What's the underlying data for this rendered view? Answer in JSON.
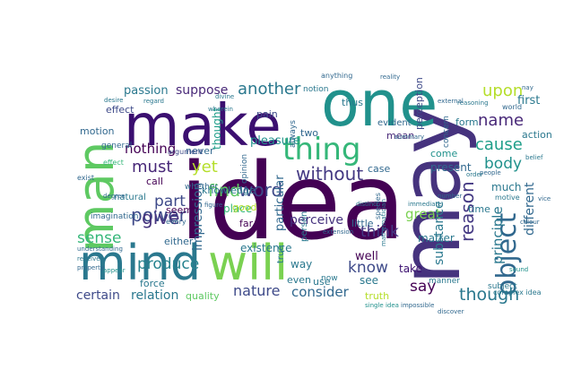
{
  "words": [
    {
      "text": "idea",
      "color": "#440154"
    },
    {
      "text": "may",
      "color": "#46337e"
    },
    {
      "text": "one",
      "color": "#21918c"
    },
    {
      "text": "make",
      "color": "#3b0f70"
    },
    {
      "text": "man",
      "color": "#5ec962"
    },
    {
      "text": "mind",
      "color": "#2a788e"
    },
    {
      "text": "will",
      "color": "#7ad151"
    },
    {
      "text": "thing",
      "color": "#35b779"
    },
    {
      "text": "object",
      "color": "#31688e"
    },
    {
      "text": "reason",
      "color": "#443983"
    },
    {
      "text": "without",
      "color": "#443983"
    },
    {
      "text": "word",
      "color": "#3e4a89"
    },
    {
      "text": "power",
      "color": "#3e4a89"
    },
    {
      "text": "another",
      "color": "#2a788e"
    },
    {
      "text": "must",
      "color": "#482878"
    },
    {
      "text": "give",
      "color": "#46337e"
    },
    {
      "text": "part",
      "color": "#3e4a89"
    },
    {
      "text": "find",
      "color": "#5ec962"
    },
    {
      "text": "yet",
      "color": "#b5de2b"
    },
    {
      "text": "upon",
      "color": "#b5de2b"
    },
    {
      "text": "name",
      "color": "#482878"
    },
    {
      "text": "cause",
      "color": "#1f9e89"
    },
    {
      "text": "body",
      "color": "#21918c"
    },
    {
      "text": "think",
      "color": "#443983"
    },
    {
      "text": "sense",
      "color": "#35b779"
    },
    {
      "text": "nothing",
      "color": "#440154"
    },
    {
      "text": "know",
      "color": "#3e4a89"
    },
    {
      "text": "say",
      "color": "#440154"
    },
    {
      "text": "though",
      "color": "#2a788e"
    },
    {
      "text": "produce",
      "color": "#26828e"
    },
    {
      "text": "nature",
      "color": "#3e4a89"
    },
    {
      "text": "consider",
      "color": "#31688e"
    },
    {
      "text": "great",
      "color": "#7ad151"
    },
    {
      "text": "principle",
      "color": "#2a788e"
    },
    {
      "text": "different",
      "color": "#31688e"
    },
    {
      "text": "impression",
      "color": "#31688e"
    },
    {
      "text": "suppose",
      "color": "#482878"
    },
    {
      "text": "passion",
      "color": "#2a788e"
    },
    {
      "text": "certain",
      "color": "#3e4a89"
    },
    {
      "text": "relation",
      "color": "#2a788e"
    },
    {
      "text": "substance",
      "color": "#2a788e"
    },
    {
      "text": "perceive",
      "color": "#46337e"
    },
    {
      "text": "pleasure",
      "color": "#21918c"
    },
    {
      "text": "thought",
      "color": "#1f9e89"
    },
    {
      "text": "particular",
      "color": "#31688e"
    },
    {
      "text": "motion",
      "color": "#31688e"
    },
    {
      "text": "effect",
      "color": "#3e4a89"
    },
    {
      "text": "call",
      "color": "#440154"
    },
    {
      "text": "place",
      "color": "#35b779"
    },
    {
      "text": "first",
      "color": "#2a788e"
    },
    {
      "text": "perception",
      "color": "#3e4a89"
    },
    {
      "text": "action",
      "color": "#2a788e"
    },
    {
      "text": "present",
      "color": "#31688e"
    },
    {
      "text": "knowledge",
      "color": "#2a788e"
    },
    {
      "text": "never",
      "color": "#31688e"
    },
    {
      "text": "mean",
      "color": "#482878"
    },
    {
      "text": "well",
      "color": "#440154"
    },
    {
      "text": "take",
      "color": "#3b0f70"
    },
    {
      "text": "see",
      "color": "#2a788e"
    },
    {
      "text": "way",
      "color": "#2a788e"
    },
    {
      "text": "even",
      "color": "#2a788e"
    },
    {
      "text": "force",
      "color": "#2a788e"
    },
    {
      "text": "quality",
      "color": "#5ec962"
    },
    {
      "text": "truth",
      "color": "#b5de2b"
    },
    {
      "text": "time",
      "color": "#2a788e"
    },
    {
      "text": "matter",
      "color": "#2a788e"
    },
    {
      "text": "much",
      "color": "#2a788e"
    },
    {
      "text": "come",
      "color": "#21918c"
    },
    {
      "text": "form",
      "color": "#2a788e"
    },
    {
      "text": "existence",
      "color": "#2a788e"
    },
    {
      "text": "little",
      "color": "#31688e"
    },
    {
      "text": "seem",
      "color": "#440154"
    },
    {
      "text": "good",
      "color": "#b5de2b"
    },
    {
      "text": "far",
      "color": "#440154"
    },
    {
      "text": "either",
      "color": "#31688e"
    },
    {
      "text": "use",
      "color": "#2a788e"
    },
    {
      "text": "case",
      "color": "#31688e"
    },
    {
      "text": "thus",
      "color": "#2a788e"
    },
    {
      "text": "evident",
      "color": "#31688e"
    },
    {
      "text": "two",
      "color": "#31688e"
    },
    {
      "text": "pain",
      "color": "#3e4a89"
    },
    {
      "text": "natural",
      "color": "#2a788e"
    },
    {
      "text": "imagination",
      "color": "#31688e"
    },
    {
      "text": "person",
      "color": "#2a788e"
    },
    {
      "text": "true",
      "color": "#2a788e"
    },
    {
      "text": "always",
      "color": "#31688e"
    },
    {
      "text": "manner",
      "color": "#2a788e"
    },
    {
      "text": "subject",
      "color": "#2a788e"
    },
    {
      "text": "opinion",
      "color": "#31688e"
    },
    {
      "text": "whether",
      "color": "#31688e"
    },
    {
      "text": "notion",
      "color": "#2a788e"
    },
    {
      "text": "general",
      "color": "#31688e"
    },
    {
      "text": "argument",
      "color": "#3e4a89"
    },
    {
      "text": "exist",
      "color": "#31688e"
    },
    {
      "text": "every",
      "color": "#31688e"
    },
    {
      "text": "now",
      "color": "#2a788e"
    },
    {
      "text": "concern",
      "color": "#31688e"
    },
    {
      "text": "species",
      "color": "#31688e"
    },
    {
      "text": "mathematician",
      "color": "#2a788e"
    },
    {
      "text": "effect",
      "color": "#35b779"
    },
    {
      "text": "degree",
      "color": "#31688e"
    },
    {
      "text": "people",
      "color": "#31688e"
    },
    {
      "text": "world",
      "color": "#31688e"
    },
    {
      "text": "motive",
      "color": "#2a788e"
    },
    {
      "text": "anything",
      "color": "#31688e"
    },
    {
      "text": "extension",
      "color": "#31688e"
    },
    {
      "text": "figure",
      "color": "#31688e"
    },
    {
      "text": "regard",
      "color": "#2a788e"
    },
    {
      "text": "complex idea",
      "color": "#2a788e"
    },
    {
      "text": "impossible",
      "color": "#31688e"
    },
    {
      "text": "single idea",
      "color": "#21918c"
    },
    {
      "text": "understanding",
      "color": "#31688e"
    },
    {
      "text": "receive",
      "color": "#2a788e"
    },
    {
      "text": "property",
      "color": "#31688e"
    },
    {
      "text": "appear",
      "color": "#21918c"
    },
    {
      "text": "desire",
      "color": "#2a788e"
    },
    {
      "text": "reality",
      "color": "#31688e"
    },
    {
      "text": "order",
      "color": "#2a788e"
    },
    {
      "text": "summary",
      "color": "#31688e"
    },
    {
      "text": "reasoning",
      "color": "#2a788e"
    },
    {
      "text": "number",
      "color": "#31688e"
    },
    {
      "text": "sound",
      "color": "#21918c"
    },
    {
      "text": "discover",
      "color": "#31688e"
    },
    {
      "text": "belief",
      "color": "#2a788e"
    },
    {
      "text": "vice",
      "color": "#31688e"
    },
    {
      "text": "immediate",
      "color": "#2a788e"
    },
    {
      "text": "external",
      "color": "#31688e"
    },
    {
      "text": "distinct",
      "color": "#2a788e"
    },
    {
      "text": "nay",
      "color": "#31688e"
    },
    {
      "text": "wherein",
      "color": "#2a788e"
    },
    {
      "text": "colour",
      "color": "#31688e"
    },
    {
      "text": "divine",
      "color": "#2a788e"
    }
  ]
}
